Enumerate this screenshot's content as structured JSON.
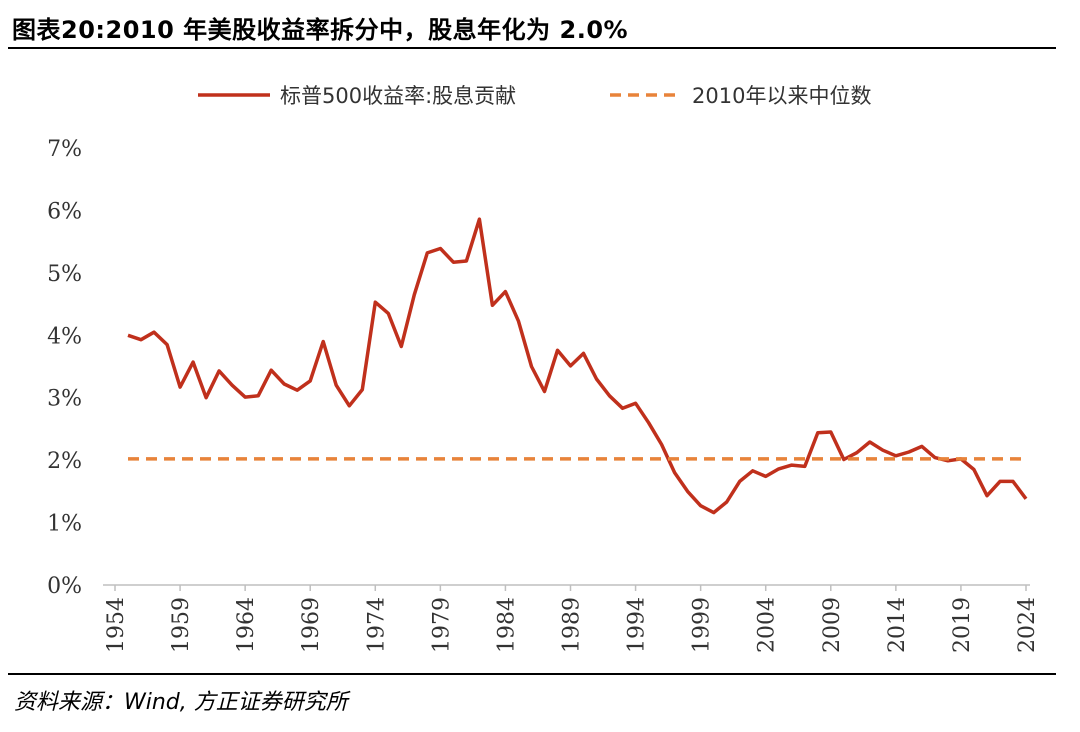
{
  "header": {
    "title": "图表20:2010 年美股收益率拆分中，股息年化为 2.0%"
  },
  "footer": {
    "source": "资料来源：Wind, 方正证券研究所"
  },
  "chart_data": {
    "type": "line",
    "title": "图表20:2010 年美股收益率拆分中，股息年化为 2.0%",
    "xlabel": "",
    "ylabel": "",
    "ylim": [
      0,
      7
    ],
    "yticks": [
      "0%",
      "1%",
      "2%",
      "3%",
      "4%",
      "5%",
      "6%",
      "7%"
    ],
    "xlim": [
      1954,
      2024
    ],
    "xticks": [
      "1954",
      "1959",
      "1964",
      "1969",
      "1974",
      "1979",
      "1984",
      "1989",
      "1994",
      "1999",
      "2004",
      "2009",
      "2014",
      "2019",
      "2024"
    ],
    "legend_position": "top-center",
    "grid": false,
    "series": [
      {
        "name": "标普500收益率:股息贡献",
        "color": "#C0301C",
        "style": "solid",
        "x": [
          1955,
          1956,
          1957,
          1958,
          1959,
          1960,
          1961,
          1962,
          1963,
          1964,
          1965,
          1966,
          1967,
          1968,
          1969,
          1970,
          1971,
          1972,
          1973,
          1974,
          1975,
          1976,
          1977,
          1978,
          1979,
          1980,
          1981,
          1982,
          1983,
          1984,
          1985,
          1986,
          1987,
          1988,
          1989,
          1990,
          1991,
          1992,
          1993,
          1994,
          1995,
          1996,
          1997,
          1998,
          1999,
          2000,
          2001,
          2002,
          2003,
          2004,
          2005,
          2006,
          2007,
          2008,
          2009,
          2010,
          2011,
          2012,
          2013,
          2014,
          2015,
          2016,
          2017,
          2018,
          2019,
          2020,
          2021,
          2022,
          2023,
          2024
        ],
        "values": [
          4.0,
          3.93,
          4.05,
          3.85,
          3.17,
          3.57,
          3.0,
          3.43,
          3.2,
          3.01,
          3.03,
          3.44,
          3.22,
          3.12,
          3.27,
          3.9,
          3.2,
          2.87,
          3.13,
          4.53,
          4.35,
          3.82,
          4.65,
          5.32,
          5.39,
          5.17,
          5.19,
          5.86,
          4.48,
          4.7,
          4.23,
          3.5,
          3.1,
          3.76,
          3.51,
          3.71,
          3.3,
          3.03,
          2.83,
          2.91,
          2.6,
          2.25,
          1.8,
          1.5,
          1.27,
          1.16,
          1.33,
          1.66,
          1.83,
          1.74,
          1.86,
          1.92,
          1.9,
          2.44,
          2.45,
          2.01,
          2.12,
          2.29,
          2.16,
          2.07,
          2.13,
          2.22,
          2.04,
          1.99,
          2.02,
          1.85,
          1.43,
          1.66,
          1.66,
          1.38
        ]
      },
      {
        "name": "2010年以来中位数",
        "color": "#E8833A",
        "style": "dashed",
        "x": [
          1955,
          2024
        ],
        "values": [
          2.02,
          2.02
        ]
      }
    ]
  }
}
